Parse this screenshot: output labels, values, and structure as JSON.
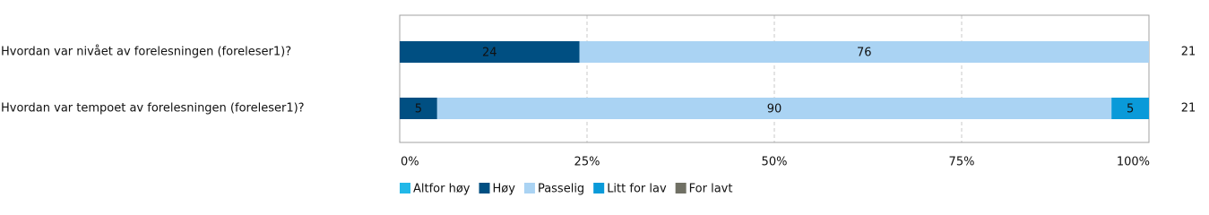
{
  "chart_data": {
    "type": "stacked-bar-horizontal",
    "categories": [
      "Hvordan var nivået av forelesningen (foreleser1)?",
      "Hvordan var tempoet av forelesningen (foreleser1)?"
    ],
    "n": [
      21,
      21
    ],
    "series": [
      {
        "name": "Altfor høy",
        "color": "#22b8e8",
        "values": [
          0,
          0
        ]
      },
      {
        "name": "Høy",
        "color": "#004f82",
        "values": [
          24,
          5
        ]
      },
      {
        "name": "Passelig",
        "color": "#aad3f3",
        "values": [
          76,
          90
        ]
      },
      {
        "name": "Litt for lav",
        "color": "#0a9ad9",
        "values": [
          0,
          5
        ]
      },
      {
        "name": "For lavt",
        "color": "#707064",
        "values": [
          0,
          0
        ]
      }
    ],
    "xlim": [
      0,
      100
    ],
    "xticks": [
      {
        "value": 0,
        "label": "0%"
      },
      {
        "value": 25,
        "label": "25%"
      },
      {
        "value": 50,
        "label": "50%"
      },
      {
        "value": 75,
        "label": "75%"
      },
      {
        "value": 100,
        "label": "100%"
      }
    ],
    "grid": true
  }
}
